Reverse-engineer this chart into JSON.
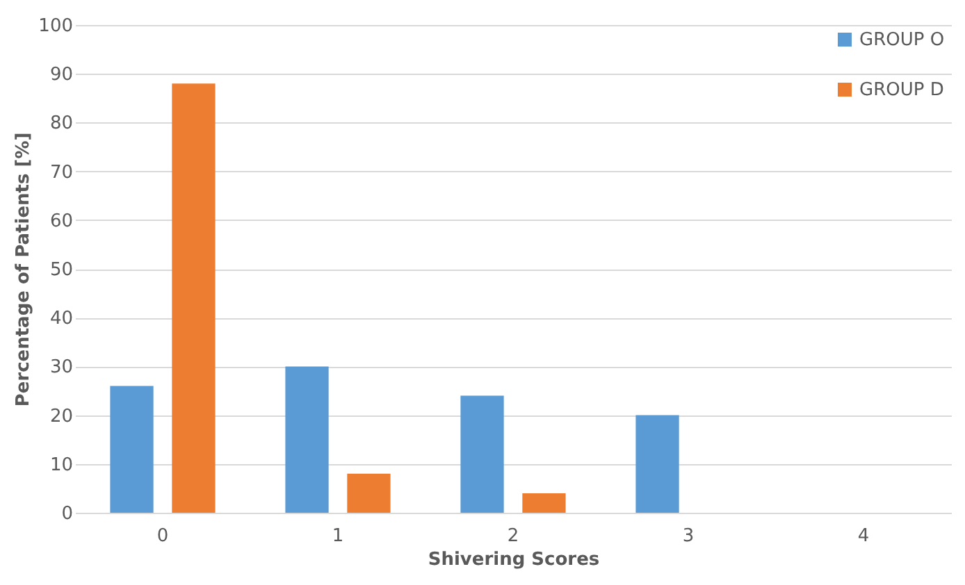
{
  "chart_data": {
    "type": "bar",
    "xlabel": "Shivering Scores",
    "ylabel": "Percentage of Patients [%]",
    "categories": [
      "0",
      "1",
      "2",
      "3",
      "4"
    ],
    "series": [
      {
        "name": "GROUP O",
        "color": "#5b9bd5",
        "values": [
          26,
          30,
          24,
          20,
          0
        ]
      },
      {
        "name": "GROUP D",
        "color": "#ed7d31",
        "values": [
          88,
          8,
          4,
          0,
          0
        ]
      }
    ],
    "ylim": [
      0,
      100
    ],
    "yticks": [
      0,
      10,
      20,
      30,
      40,
      50,
      60,
      70,
      80,
      90,
      100
    ],
    "grid": "y",
    "legend": "top right"
  }
}
